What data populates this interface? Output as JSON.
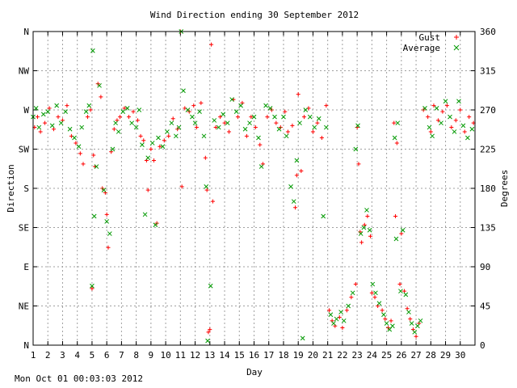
{
  "timestamp": "Mon Oct 01 00:03:03 2012",
  "colors": {
    "gust": "#ff0000",
    "average": "#009900",
    "grid": "#a0a0a0",
    "axis": "#000000",
    "background": "#ffffff"
  },
  "chart_data": {
    "type": "scatter",
    "title": "Wind Direction ending 30 September 2012",
    "xlabel": "Day",
    "ylabel": "Direction",
    "y2label": "Degrees",
    "xlim": [
      1,
      31
    ],
    "ylim": [
      0,
      360
    ],
    "x_ticks": [
      1,
      2,
      3,
      4,
      5,
      6,
      7,
      8,
      9,
      10,
      11,
      12,
      13,
      14,
      15,
      16,
      17,
      18,
      19,
      20,
      21,
      22,
      23,
      24,
      25,
      26,
      27,
      28,
      29,
      30
    ],
    "x_tick_labels": [
      "1",
      "2",
      "3",
      "4",
      "5",
      "6",
      "7",
      "8",
      "9",
      "10",
      "11",
      "12",
      "13",
      "14",
      "15",
      "16",
      "17",
      "18",
      "19",
      "20",
      "21",
      "22",
      "23",
      "24",
      "25",
      "26",
      "27",
      "28",
      "29",
      "30"
    ],
    "y_ticks": [
      0,
      45,
      90,
      135,
      180,
      225,
      270,
      315,
      360
    ],
    "y_tick_labels": [
      "N",
      "NE",
      "E",
      "SE",
      "S",
      "SW",
      "W",
      "NW",
      "N"
    ],
    "y2_tick_labels": [
      "0",
      "45",
      "90",
      "135",
      "180",
      "225",
      "270",
      "315",
      "360"
    ],
    "grid": true,
    "legend_position": "top-right",
    "series": [
      {
        "name": "Gust",
        "marker": "+",
        "color": "#ff0000",
        "points": [
          [
            1.1,
            250
          ],
          [
            1.3,
            262
          ],
          [
            1.5,
            245
          ],
          [
            1.8,
            255
          ],
          [
            2.1,
            272
          ],
          [
            2.4,
            248
          ],
          [
            2.7,
            262
          ],
          [
            3.0,
            258
          ],
          [
            3.3,
            275
          ],
          [
            3.6,
            240
          ],
          [
            3.9,
            232
          ],
          [
            4.2,
            220
          ],
          [
            4.4,
            208
          ],
          [
            4.7,
            262
          ],
          [
            4.9,
            270
          ],
          [
            5.0,
            65
          ],
          [
            5.1,
            218
          ],
          [
            5.2,
            205
          ],
          [
            5.4,
            300
          ],
          [
            5.6,
            285
          ],
          [
            5.7,
            180
          ],
          [
            5.9,
            175
          ],
          [
            6.0,
            150
          ],
          [
            6.1,
            112
          ],
          [
            6.3,
            222
          ],
          [
            6.5,
            248
          ],
          [
            6.7,
            258
          ],
          [
            6.9,
            262
          ],
          [
            7.2,
            272
          ],
          [
            7.5,
            262
          ],
          [
            7.8,
            268
          ],
          [
            8.1,
            258
          ],
          [
            8.3,
            240
          ],
          [
            8.5,
            235
          ],
          [
            8.7,
            212
          ],
          [
            8.8,
            178
          ],
          [
            9.0,
            225
          ],
          [
            9.2,
            212
          ],
          [
            9.4,
            140
          ],
          [
            9.6,
            228
          ],
          [
            9.9,
            235
          ],
          [
            10.2,
            240
          ],
          [
            10.5,
            260
          ],
          [
            10.8,
            248
          ],
          [
            11.0,
            360
          ],
          [
            11.1,
            182
          ],
          [
            11.3,
            272
          ],
          [
            11.6,
            268
          ],
          [
            11.9,
            275
          ],
          [
            12.1,
            250
          ],
          [
            12.4,
            278
          ],
          [
            12.7,
            215
          ],
          [
            12.8,
            178
          ],
          [
            12.9,
            15
          ],
          [
            13.0,
            18
          ],
          [
            13.1,
            345
          ],
          [
            13.2,
            165
          ],
          [
            13.4,
            250
          ],
          [
            13.7,
            262
          ],
          [
            14.0,
            255
          ],
          [
            14.3,
            245
          ],
          [
            14.6,
            282
          ],
          [
            14.9,
            262
          ],
          [
            15.2,
            278
          ],
          [
            15.5,
            240
          ],
          [
            15.8,
            262
          ],
          [
            16.1,
            250
          ],
          [
            16.4,
            230
          ],
          [
            16.6,
            208
          ],
          [
            16.9,
            262
          ],
          [
            17.2,
            270
          ],
          [
            17.5,
            255
          ],
          [
            17.8,
            250
          ],
          [
            18.1,
            268
          ],
          [
            18.3,
            245
          ],
          [
            18.6,
            252
          ],
          [
            18.8,
            158
          ],
          [
            18.9,
            195
          ],
          [
            19.0,
            288
          ],
          [
            19.2,
            200
          ],
          [
            19.4,
            262
          ],
          [
            19.7,
            272
          ],
          [
            20.0,
            245
          ],
          [
            20.3,
            255
          ],
          [
            20.6,
            238
          ],
          [
            20.9,
            275
          ],
          [
            21.1,
            40
          ],
          [
            21.3,
            28
          ],
          [
            21.5,
            22
          ],
          [
            21.8,
            32
          ],
          [
            22.0,
            20
          ],
          [
            22.3,
            40
          ],
          [
            22.6,
            55
          ],
          [
            22.9,
            70
          ],
          [
            23.0,
            250
          ],
          [
            23.1,
            208
          ],
          [
            23.2,
            130
          ],
          [
            23.3,
            118
          ],
          [
            23.5,
            138
          ],
          [
            23.7,
            148
          ],
          [
            23.9,
            125
          ],
          [
            24.0,
            60
          ],
          [
            24.2,
            55
          ],
          [
            24.4,
            45
          ],
          [
            24.7,
            40
          ],
          [
            24.9,
            30
          ],
          [
            25.1,
            20
          ],
          [
            25.3,
            28
          ],
          [
            25.5,
            255
          ],
          [
            25.6,
            148
          ],
          [
            25.7,
            232
          ],
          [
            25.9,
            70
          ],
          [
            26.0,
            128
          ],
          [
            26.2,
            62
          ],
          [
            26.4,
            42
          ],
          [
            26.6,
            30
          ],
          [
            26.8,
            18
          ],
          [
            27.0,
            10
          ],
          [
            27.2,
            25
          ],
          [
            27.5,
            270
          ],
          [
            27.8,
            262
          ],
          [
            28.0,
            245
          ],
          [
            28.2,
            275
          ],
          [
            28.5,
            258
          ],
          [
            28.8,
            268
          ],
          [
            29.1,
            275
          ],
          [
            29.4,
            250
          ],
          [
            29.7,
            258
          ],
          [
            30.0,
            270
          ],
          [
            30.3,
            245
          ],
          [
            30.6,
            262
          ],
          [
            30.9,
            255
          ]
        ]
      },
      {
        "name": "Average",
        "marker": "x",
        "color": "#009900",
        "points": [
          [
            1.0,
            262
          ],
          [
            1.2,
            272
          ],
          [
            1.4,
            250
          ],
          [
            1.7,
            265
          ],
          [
            2.0,
            268
          ],
          [
            2.3,
            252
          ],
          [
            2.6,
            275
          ],
          [
            2.9,
            255
          ],
          [
            3.2,
            268
          ],
          [
            3.5,
            248
          ],
          [
            3.8,
            238
          ],
          [
            4.1,
            228
          ],
          [
            4.3,
            250
          ],
          [
            4.6,
            268
          ],
          [
            4.8,
            275
          ],
          [
            5.0,
            68
          ],
          [
            5.05,
            338
          ],
          [
            5.15,
            148
          ],
          [
            5.3,
            205
          ],
          [
            5.5,
            298
          ],
          [
            5.8,
            178
          ],
          [
            6.0,
            142
          ],
          [
            6.2,
            128
          ],
          [
            6.4,
            225
          ],
          [
            6.6,
            255
          ],
          [
            6.8,
            245
          ],
          [
            7.1,
            268
          ],
          [
            7.4,
            272
          ],
          [
            7.7,
            255
          ],
          [
            8.0,
            250
          ],
          [
            8.2,
            270
          ],
          [
            8.4,
            230
          ],
          [
            8.6,
            150
          ],
          [
            8.8,
            215
          ],
          [
            9.1,
            232
          ],
          [
            9.3,
            138
          ],
          [
            9.5,
            238
          ],
          [
            9.8,
            228
          ],
          [
            10.1,
            245
          ],
          [
            10.4,
            255
          ],
          [
            10.7,
            240
          ],
          [
            10.9,
            250
          ],
          [
            11.05,
            360
          ],
          [
            11.2,
            292
          ],
          [
            11.5,
            270
          ],
          [
            11.8,
            262
          ],
          [
            12.0,
            255
          ],
          [
            12.3,
            268
          ],
          [
            12.6,
            240
          ],
          [
            12.75,
            182
          ],
          [
            12.85,
            5
          ],
          [
            13.05,
            68
          ],
          [
            13.3,
            258
          ],
          [
            13.6,
            250
          ],
          [
            13.9,
            265
          ],
          [
            14.2,
            255
          ],
          [
            14.5,
            282
          ],
          [
            14.8,
            268
          ],
          [
            15.1,
            275
          ],
          [
            15.4,
            248
          ],
          [
            15.7,
            255
          ],
          [
            16.0,
            262
          ],
          [
            16.3,
            238
          ],
          [
            16.5,
            205
          ],
          [
            16.8,
            275
          ],
          [
            17.1,
            272
          ],
          [
            17.4,
            262
          ],
          [
            17.7,
            248
          ],
          [
            18.0,
            262
          ],
          [
            18.2,
            240
          ],
          [
            18.5,
            182
          ],
          [
            18.7,
            165
          ],
          [
            18.9,
            212
          ],
          [
            19.1,
            255
          ],
          [
            19.3,
            8
          ],
          [
            19.5,
            270
          ],
          [
            19.8,
            262
          ],
          [
            20.1,
            250
          ],
          [
            20.4,
            260
          ],
          [
            20.7,
            148
          ],
          [
            20.9,
            250
          ],
          [
            21.2,
            35
          ],
          [
            21.4,
            25
          ],
          [
            21.6,
            30
          ],
          [
            21.9,
            38
          ],
          [
            22.1,
            28
          ],
          [
            22.4,
            45
          ],
          [
            22.7,
            60
          ],
          [
            22.9,
            225
          ],
          [
            23.05,
            252
          ],
          [
            23.25,
            128
          ],
          [
            23.45,
            135
          ],
          [
            23.65,
            155
          ],
          [
            23.85,
            132
          ],
          [
            24.05,
            70
          ],
          [
            24.25,
            60
          ],
          [
            24.5,
            48
          ],
          [
            24.8,
            35
          ],
          [
            25.0,
            25
          ],
          [
            25.2,
            18
          ],
          [
            25.4,
            22
          ],
          [
            25.55,
            238
          ],
          [
            25.65,
            122
          ],
          [
            25.75,
            255
          ],
          [
            25.95,
            62
          ],
          [
            26.1,
            132
          ],
          [
            26.3,
            58
          ],
          [
            26.5,
            38
          ],
          [
            26.7,
            25
          ],
          [
            26.9,
            15
          ],
          [
            27.1,
            22
          ],
          [
            27.3,
            28
          ],
          [
            27.6,
            272
          ],
          [
            27.9,
            250
          ],
          [
            28.1,
            240
          ],
          [
            28.4,
            272
          ],
          [
            28.7,
            255
          ],
          [
            29.0,
            280
          ],
          [
            29.3,
            262
          ],
          [
            29.6,
            245
          ],
          [
            29.9,
            280
          ],
          [
            30.2,
            252
          ],
          [
            30.5,
            238
          ],
          [
            30.8,
            248
          ]
        ]
      }
    ]
  }
}
